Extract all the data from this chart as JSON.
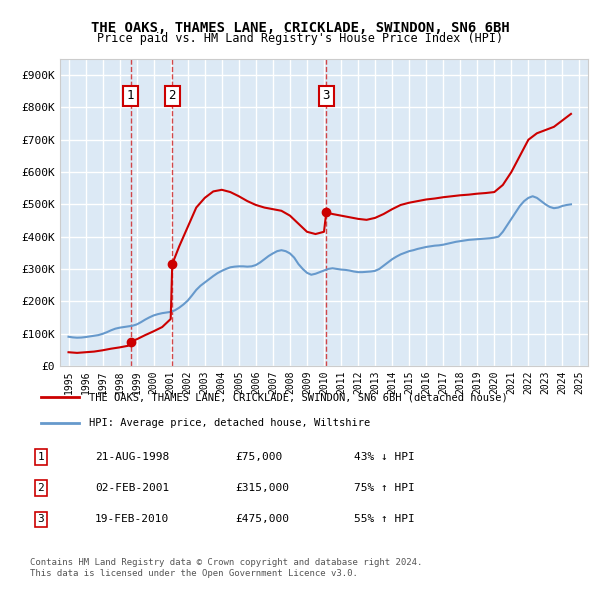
{
  "title": "THE OAKS, THAMES LANE, CRICKLADE, SWINDON, SN6 6BH",
  "subtitle": "Price paid vs. HM Land Registry's House Price Index (HPI)",
  "ylabel": "",
  "xlabel": "",
  "ylim": [
    0,
    950000
  ],
  "yticks": [
    0,
    100000,
    200000,
    300000,
    400000,
    500000,
    600000,
    700000,
    800000,
    900000
  ],
  "ytick_labels": [
    "£0",
    "£100K",
    "£200K",
    "£300K",
    "£400K",
    "£500K",
    "£600K",
    "£700K",
    "£800K",
    "£900K"
  ],
  "xlim_start": 1994.5,
  "xlim_end": 2025.5,
  "background_color": "#dce9f5",
  "plot_bg_color": "#dce9f5",
  "grid_color": "#ffffff",
  "sale_events": [
    {
      "num": 1,
      "date": "21-AUG-1998",
      "price": 75000,
      "year": 1998.64,
      "label": "£75,000",
      "pct": "43%",
      "dir": "↓"
    },
    {
      "num": 2,
      "date": "02-FEB-2001",
      "price": 315000,
      "year": 2001.09,
      "label": "£315,000",
      "pct": "75%",
      "dir": "↑"
    },
    {
      "num": 3,
      "date": "19-FEB-2010",
      "price": 475000,
      "year": 2010.13,
      "label": "£475,000",
      "pct": "55%",
      "dir": "↑"
    }
  ],
  "legend_line1": "THE OAKS, THAMES LANE, CRICKLADE, SWINDON, SN6 6BH (detached house)",
  "legend_line2": "HPI: Average price, detached house, Wiltshire",
  "footer1": "Contains HM Land Registry data © Crown copyright and database right 2024.",
  "footer2": "This data is licensed under the Open Government Licence v3.0.",
  "red_color": "#cc0000",
  "blue_color": "#6699cc",
  "hpi_data_x": [
    1995.0,
    1995.25,
    1995.5,
    1995.75,
    1996.0,
    1996.25,
    1996.5,
    1996.75,
    1997.0,
    1997.25,
    1997.5,
    1997.75,
    1998.0,
    1998.25,
    1998.5,
    1998.75,
    1999.0,
    1999.25,
    1999.5,
    1999.75,
    2000.0,
    2000.25,
    2000.5,
    2000.75,
    2001.0,
    2001.25,
    2001.5,
    2001.75,
    2002.0,
    2002.25,
    2002.5,
    2002.75,
    2003.0,
    2003.25,
    2003.5,
    2003.75,
    2004.0,
    2004.25,
    2004.5,
    2004.75,
    2005.0,
    2005.25,
    2005.5,
    2005.75,
    2006.0,
    2006.25,
    2006.5,
    2006.75,
    2007.0,
    2007.25,
    2007.5,
    2007.75,
    2008.0,
    2008.25,
    2008.5,
    2008.75,
    2009.0,
    2009.25,
    2009.5,
    2009.75,
    2010.0,
    2010.25,
    2010.5,
    2010.75,
    2011.0,
    2011.25,
    2011.5,
    2011.75,
    2012.0,
    2012.25,
    2012.5,
    2012.75,
    2013.0,
    2013.25,
    2013.5,
    2013.75,
    2014.0,
    2014.25,
    2014.5,
    2014.75,
    2015.0,
    2015.25,
    2015.5,
    2015.75,
    2016.0,
    2016.25,
    2016.5,
    2016.75,
    2017.0,
    2017.25,
    2017.5,
    2017.75,
    2018.0,
    2018.25,
    2018.5,
    2018.75,
    2019.0,
    2019.25,
    2019.5,
    2019.75,
    2020.0,
    2020.25,
    2020.5,
    2020.75,
    2021.0,
    2021.25,
    2021.5,
    2021.75,
    2022.0,
    2022.25,
    2022.5,
    2022.75,
    2023.0,
    2023.25,
    2023.5,
    2023.75,
    2024.0,
    2024.25,
    2024.5
  ],
  "hpi_data_y": [
    90000,
    88000,
    87000,
    87500,
    89000,
    91000,
    93000,
    95000,
    99000,
    104000,
    110000,
    115000,
    118000,
    120000,
    122000,
    124000,
    128000,
    135000,
    143000,
    150000,
    156000,
    160000,
    163000,
    165000,
    167000,
    172000,
    180000,
    190000,
    202000,
    218000,
    235000,
    248000,
    258000,
    268000,
    278000,
    287000,
    294000,
    300000,
    305000,
    307000,
    308000,
    308000,
    307000,
    308000,
    312000,
    320000,
    330000,
    340000,
    348000,
    355000,
    358000,
    355000,
    348000,
    335000,
    315000,
    300000,
    288000,
    282000,
    285000,
    290000,
    295000,
    300000,
    302000,
    300000,
    298000,
    297000,
    295000,
    292000,
    290000,
    290000,
    291000,
    292000,
    294000,
    300000,
    310000,
    320000,
    330000,
    338000,
    345000,
    350000,
    355000,
    358000,
    362000,
    365000,
    368000,
    370000,
    372000,
    373000,
    375000,
    378000,
    381000,
    384000,
    386000,
    388000,
    390000,
    391000,
    392000,
    393000,
    394000,
    395000,
    397000,
    400000,
    415000,
    435000,
    455000,
    475000,
    495000,
    510000,
    520000,
    525000,
    520000,
    510000,
    500000,
    492000,
    488000,
    490000,
    495000,
    498000,
    500000
  ],
  "red_data_x": [
    1995.0,
    1995.5,
    1996.0,
    1996.5,
    1997.0,
    1997.5,
    1998.0,
    1998.5,
    1998.64,
    1999.0,
    1999.5,
    2000.0,
    2000.5,
    2001.0,
    2001.09,
    2001.5,
    2002.0,
    2002.5,
    2003.0,
    2003.5,
    2004.0,
    2004.5,
    2005.0,
    2005.5,
    2006.0,
    2006.5,
    2007.0,
    2007.5,
    2008.0,
    2008.5,
    2009.0,
    2009.5,
    2010.0,
    2010.13,
    2010.5,
    2011.0,
    2011.5,
    2012.0,
    2012.5,
    2013.0,
    2013.5,
    2014.0,
    2014.5,
    2015.0,
    2015.5,
    2016.0,
    2016.5,
    2017.0,
    2017.5,
    2018.0,
    2018.5,
    2019.0,
    2019.5,
    2020.0,
    2020.5,
    2021.0,
    2021.5,
    2022.0,
    2022.5,
    2023.0,
    2023.5,
    2024.0,
    2024.5
  ],
  "red_data_y": [
    42000,
    40000,
    42000,
    44000,
    48000,
    53000,
    57000,
    62000,
    75000,
    82000,
    95000,
    107000,
    120000,
    145000,
    315000,
    370000,
    430000,
    490000,
    520000,
    540000,
    545000,
    538000,
    525000,
    510000,
    498000,
    490000,
    485000,
    480000,
    465000,
    440000,
    415000,
    408000,
    415000,
    475000,
    470000,
    465000,
    460000,
    455000,
    452000,
    458000,
    470000,
    485000,
    498000,
    505000,
    510000,
    515000,
    518000,
    522000,
    525000,
    528000,
    530000,
    533000,
    535000,
    538000,
    560000,
    600000,
    650000,
    700000,
    720000,
    730000,
    740000,
    760000,
    780000
  ]
}
